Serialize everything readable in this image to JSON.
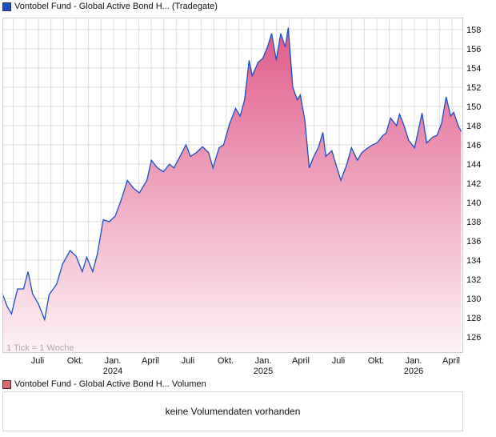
{
  "legend_main": "Vontobel Fund - Global Active Bond H... (Tradegate)",
  "legend_volume": "Vontobel Fund - Global Active Bond H... Volumen",
  "volume_message": "keine Volumendaten vorhanden",
  "tick_note": "1 Tick = 1 Woche",
  "colors": {
    "line": "#1a4fc4",
    "fill_top": "#e05a8a",
    "fill_bottom": "#fdf2f6",
    "legend_main": "#1a4fc4",
    "legend_volume": "#d9666e"
  },
  "chart_data": {
    "type": "area",
    "title": "Vontobel Fund - Global Active Bond H... (Tradegate)",
    "xlabel": "",
    "ylabel": "",
    "ylim": [
      124.5,
      159.5
    ],
    "xlim": [
      2023.24,
      2026.3
    ],
    "grid": true,
    "y_ticks": [
      126,
      128,
      130,
      132,
      134,
      136,
      138,
      140,
      142,
      144,
      146,
      148,
      150,
      152,
      154,
      156,
      158
    ],
    "x_ticks": [
      {
        "t": 2023.5,
        "label": "Juli",
        "year": ""
      },
      {
        "t": 2023.75,
        "label": "Okt.",
        "year": ""
      },
      {
        "t": 2024.0,
        "label": "Jan.",
        "year": "2024"
      },
      {
        "t": 2024.25,
        "label": "April",
        "year": ""
      },
      {
        "t": 2024.5,
        "label": "Juli",
        "year": ""
      },
      {
        "t": 2024.75,
        "label": "Okt.",
        "year": ""
      },
      {
        "t": 2025.0,
        "label": "Jan.",
        "year": "2025"
      },
      {
        "t": 2025.25,
        "label": "April",
        "year": ""
      },
      {
        "t": 2025.5,
        "label": "Juli",
        "year": ""
      },
      {
        "t": 2025.75,
        "label": "Okt.",
        "year": ""
      },
      {
        "t": 2026.0,
        "label": "Jan.",
        "year": "2026"
      },
      {
        "t": 2026.25,
        "label": "April",
        "year": ""
      }
    ],
    "series": [
      {
        "name": "Vontobel Fund - Global Active Bond H... (Tradegate)",
        "points": [
          [
            2023.24,
            130.5
          ],
          [
            2023.27,
            129.2
          ],
          [
            2023.3,
            128.4
          ],
          [
            2023.34,
            131
          ],
          [
            2023.38,
            131
          ],
          [
            2023.41,
            132.8
          ],
          [
            2023.44,
            130.5
          ],
          [
            2023.48,
            129.4
          ],
          [
            2023.52,
            127.8
          ],
          [
            2023.55,
            130.4
          ],
          [
            2023.6,
            131.5
          ],
          [
            2023.64,
            133.6
          ],
          [
            2023.69,
            135
          ],
          [
            2023.73,
            134.4
          ],
          [
            2023.77,
            132.8
          ],
          [
            2023.8,
            134.3
          ],
          [
            2023.84,
            132.8
          ],
          [
            2023.87,
            134.6
          ],
          [
            2023.91,
            138.2
          ],
          [
            2023.95,
            138
          ],
          [
            2023.99,
            138.6
          ],
          [
            2024.03,
            140.3
          ],
          [
            2024.07,
            142.3
          ],
          [
            2024.11,
            141.5
          ],
          [
            2024.15,
            141
          ],
          [
            2024.2,
            142.3
          ],
          [
            2024.23,
            144.4
          ],
          [
            2024.27,
            143.6
          ],
          [
            2024.31,
            143.2
          ],
          [
            2024.35,
            144
          ],
          [
            2024.38,
            143.6
          ],
          [
            2024.42,
            144.8
          ],
          [
            2024.46,
            146
          ],
          [
            2024.49,
            144.8
          ],
          [
            2024.53,
            145.2
          ],
          [
            2024.57,
            145.8
          ],
          [
            2024.61,
            145.2
          ],
          [
            2024.64,
            143.6
          ],
          [
            2024.68,
            145.7
          ],
          [
            2024.71,
            146
          ],
          [
            2024.75,
            148.2
          ],
          [
            2024.79,
            149.8
          ],
          [
            2024.82,
            149
          ],
          [
            2024.85,
            150.7
          ],
          [
            2024.88,
            154.8
          ],
          [
            2024.9,
            153.2
          ],
          [
            2024.94,
            154.6
          ],
          [
            2024.97,
            155
          ],
          [
            2025.0,
            156.1
          ],
          [
            2025.03,
            157.6
          ],
          [
            2025.06,
            154.8
          ],
          [
            2025.09,
            157.6
          ],
          [
            2025.12,
            156.2
          ],
          [
            2025.14,
            158.2
          ],
          [
            2025.17,
            152
          ],
          [
            2025.2,
            150.7
          ],
          [
            2025.22,
            151.2
          ],
          [
            2025.25,
            148.6
          ],
          [
            2025.28,
            143.6
          ],
          [
            2025.31,
            144.8
          ],
          [
            2025.34,
            145.7
          ],
          [
            2025.37,
            147.3
          ],
          [
            2025.39,
            144.8
          ],
          [
            2025.43,
            145.4
          ],
          [
            2025.46,
            143.8
          ],
          [
            2025.49,
            142.3
          ],
          [
            2025.53,
            144
          ],
          [
            2025.56,
            145.7
          ],
          [
            2025.6,
            144.4
          ],
          [
            2025.63,
            145.2
          ],
          [
            2025.67,
            145.7
          ],
          [
            2025.7,
            146
          ],
          [
            2025.73,
            146.2
          ],
          [
            2025.77,
            147
          ],
          [
            2025.79,
            147.2
          ],
          [
            2025.82,
            148.8
          ],
          [
            2025.86,
            148
          ],
          [
            2025.88,
            149.2
          ],
          [
            2025.91,
            148
          ],
          [
            2025.94,
            146.5
          ],
          [
            2025.98,
            145.7
          ],
          [
            2026.03,
            149.3
          ],
          [
            2026.06,
            146.2
          ],
          [
            2026.1,
            146.8
          ],
          [
            2026.13,
            147
          ],
          [
            2026.16,
            148.3
          ],
          [
            2026.19,
            151
          ],
          [
            2026.22,
            149
          ],
          [
            2026.24,
            149.4
          ],
          [
            2026.27,
            148
          ],
          [
            2026.29,
            147.4
          ]
        ]
      }
    ]
  }
}
